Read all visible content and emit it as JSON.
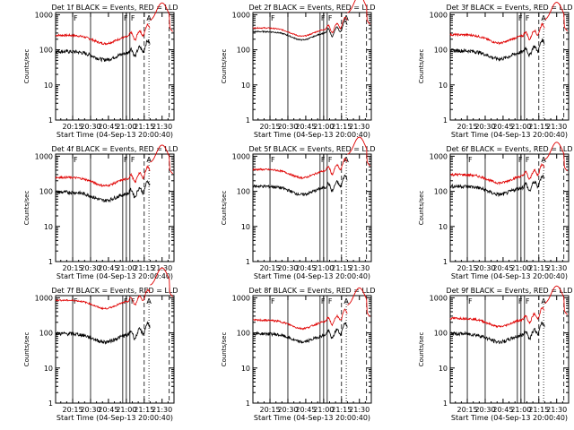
{
  "colors": {
    "events": "#000000",
    "lld": "#e00000",
    "axes": "#000000"
  },
  "common": {
    "ylabel": "Counts/sec",
    "xlabel": "Start Time (04-Sep-13 20:00:40)",
    "x_ticks": [
      "20:15",
      "20:30",
      "20:45",
      "21:00",
      "21:15",
      "21:30"
    ],
    "x_tick_minutes": [
      15,
      30,
      45,
      60,
      75,
      90
    ],
    "x_range_minutes": [
      0.67,
      100
    ],
    "y_ticks": [
      "1",
      "10",
      "100",
      "1000"
    ],
    "y_tick_values": [
      1,
      10,
      100,
      1000
    ],
    "y_range": [
      1,
      1150
    ],
    "y_scale": "log",
    "attenuator_marker": "A"
  },
  "chart_data": [
    {
      "type": "line",
      "title": "Det 1f BLACK = Events, RED = LLD",
      "events_level": 90,
      "lld_level": 260,
      "events_noise": 0.12,
      "lld_noise": 0.07,
      "solid_lines": [
        15,
        30,
        57,
        60,
        63
      ],
      "f_labels": [
        15,
        57,
        63
      ],
      "dashed_lines": [
        75,
        96
      ],
      "dotted_lines": [
        79
      ]
    },
    {
      "type": "line",
      "title": "Det 2f BLACK = Events, RED = LLD",
      "events_level": 330,
      "lld_level": 420,
      "events_noise": 0.04,
      "lld_noise": 0.04,
      "solid_lines": [
        15,
        30,
        57,
        60,
        63
      ],
      "f_labels": [
        15,
        57,
        63
      ],
      "dashed_lines": [
        75,
        96
      ],
      "dotted_lines": [
        79
      ]
    },
    {
      "type": "line",
      "title": "Det 3f BLACK = Events, RED = LLD",
      "events_level": 95,
      "lld_level": 270,
      "events_noise": 0.12,
      "lld_noise": 0.07,
      "solid_lines": [
        57,
        60,
        63
      ],
      "f_labels": [
        57,
        63
      ],
      "dashed_lines": [
        75,
        96
      ],
      "dotted_lines": [
        79
      ]
    },
    {
      "type": "line",
      "title": "Det 4f BLACK = Events, RED = LLD",
      "events_level": 95,
      "lld_level": 250,
      "events_noise": 0.12,
      "lld_noise": 0.07,
      "solid_lines": [
        15,
        30,
        57,
        60,
        63
      ],
      "f_labels": [
        15,
        57,
        63
      ],
      "dashed_lines": [
        75,
        96
      ],
      "dotted_lines": [
        79
      ]
    },
    {
      "type": "line",
      "title": "Det 5f BLACK = Events, RED = LLD",
      "events_level": 140,
      "lld_level": 420,
      "events_noise": 0.1,
      "lld_noise": 0.06,
      "solid_lines": [
        15,
        57,
        60,
        63
      ],
      "f_labels": [
        15,
        57,
        63
      ],
      "dashed_lines": [
        75,
        96
      ],
      "dotted_lines": [
        79
      ]
    },
    {
      "type": "line",
      "title": "Det 6f BLACK = Events, RED = LLD",
      "events_level": 140,
      "lld_level": 300,
      "events_noise": 0.12,
      "lld_noise": 0.08,
      "solid_lines": [
        15,
        30,
        57,
        60,
        63
      ],
      "f_labels": [
        15,
        57,
        63
      ],
      "dashed_lines": [
        75,
        96
      ],
      "dotted_lines": [
        79
      ]
    },
    {
      "type": "line",
      "title": "Det 7f BLACK = Events, RED = LLD",
      "events_level": 95,
      "lld_level": 850,
      "events_noise": 0.12,
      "lld_noise": 0.05,
      "solid_lines": [
        15,
        30,
        57,
        60,
        63
      ],
      "f_labels": [
        15,
        57,
        63
      ],
      "dashed_lines": [
        75,
        96
      ],
      "dotted_lines": [
        79
      ]
    },
    {
      "type": "line",
      "title": "Det 8f BLACK = Events, RED = LLD",
      "events_level": 95,
      "lld_level": 230,
      "events_noise": 0.1,
      "lld_noise": 0.06,
      "solid_lines": [
        15,
        30,
        57,
        60,
        63
      ],
      "f_labels": [
        15,
        57,
        63
      ],
      "dashed_lines": [
        75,
        96
      ],
      "dotted_lines": [
        79
      ]
    },
    {
      "type": "line",
      "title": "Det 9f BLACK = Events, RED = LLD",
      "events_level": 95,
      "lld_level": 260,
      "events_noise": 0.12,
      "lld_noise": 0.07,
      "solid_lines": [
        15,
        30,
        57,
        60,
        63
      ],
      "f_labels": [
        15,
        57,
        63
      ],
      "dashed_lines": [
        75,
        96
      ],
      "dotted_lines": [
        79
      ]
    }
  ]
}
